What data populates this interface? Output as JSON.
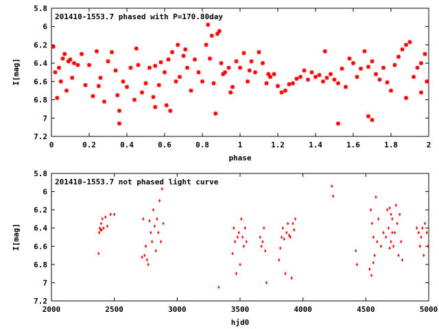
{
  "chart_data": [
    {
      "type": "scatter",
      "title": "201410-1553.7 phased with P=170.80day",
      "xlabel": "phase",
      "ylabel": "I[mag]",
      "xlim": [
        0,
        2
      ],
      "ylim": [
        5.8,
        7.2
      ],
      "y_inverted": true,
      "xticks": [
        "0",
        "0.2",
        "0.4",
        "0.6",
        "0.8",
        "1",
        "1.2",
        "1.4",
        "1.6",
        "1.8",
        "2"
      ],
      "yticks": [
        "5.8",
        "6",
        "6.2",
        "6.4",
        "6.6",
        "6.8",
        "7",
        "7.2"
      ],
      "marker": "star",
      "color": "#ff0000",
      "points": [
        [
          0.01,
          6.22
        ],
        [
          0.02,
          6.5
        ],
        [
          0.03,
          6.78
        ],
        [
          0.04,
          6.45
        ],
        [
          0.05,
          6.6
        ],
        [
          0.07,
          6.3
        ],
        [
          0.08,
          6.7
        ],
        [
          0.09,
          6.38
        ],
        [
          0.1,
          6.36
        ],
        [
          0.12,
          6.4
        ],
        [
          0.14,
          6.42
        ],
        [
          0.16,
          6.3
        ],
        [
          0.18,
          6.64
        ],
        [
          0.2,
          6.42
        ],
        [
          0.22,
          6.76
        ],
        [
          0.24,
          6.27
        ],
        [
          0.26,
          6.56
        ],
        [
          0.28,
          6.82
        ],
        [
          0.3,
          6.38
        ],
        [
          0.32,
          6.28
        ],
        [
          0.34,
          6.48
        ],
        [
          0.36,
          6.92
        ],
        [
          0.38,
          6.6
        ],
        [
          0.4,
          6.66
        ],
        [
          0.42,
          6.45
        ],
        [
          0.44,
          6.8
        ],
        [
          0.46,
          6.42
        ],
        [
          0.48,
          6.72
        ],
        [
          0.5,
          6.62
        ],
        [
          0.52,
          6.45
        ],
        [
          0.54,
          6.77
        ],
        [
          0.55,
          6.43
        ],
        [
          0.57,
          6.64
        ],
        [
          0.58,
          6.39
        ],
        [
          0.6,
          6.5
        ],
        [
          0.62,
          6.36
        ],
        [
          0.64,
          6.28
        ],
        [
          0.66,
          6.6
        ],
        [
          0.68,
          6.55
        ],
        [
          0.7,
          6.32
        ],
        [
          0.72,
          6.45
        ],
        [
          0.74,
          6.7
        ],
        [
          0.76,
          6.36
        ],
        [
          0.78,
          6.5
        ],
        [
          0.8,
          6.6
        ],
        [
          0.82,
          6.2
        ],
        [
          0.84,
          6.35
        ],
        [
          0.86,
          6.62
        ],
        [
          0.88,
          6.08
        ],
        [
          0.9,
          6.4
        ],
        [
          0.92,
          6.5
        ],
        [
          0.94,
          6.45
        ],
        [
          0.96,
          6.66
        ],
        [
          0.98,
          6.38
        ],
        [
          1.0,
          6.45
        ],
        [
          1.02,
          6.29
        ],
        [
          1.04,
          6.6
        ],
        [
          1.06,
          6.38
        ],
        [
          1.08,
          6.5
        ],
        [
          1.1,
          6.28
        ],
        [
          1.12,
          6.4
        ],
        [
          1.14,
          6.62
        ],
        [
          1.16,
          6.55
        ],
        [
          1.18,
          6.52
        ],
        [
          1.2,
          6.65
        ],
        [
          1.22,
          6.72
        ],
        [
          1.24,
          6.7
        ],
        [
          1.26,
          6.63
        ],
        [
          1.28,
          6.62
        ],
        [
          1.3,
          6.57
        ],
        [
          1.32,
          6.55
        ],
        [
          1.34,
          6.48
        ],
        [
          1.36,
          6.58
        ],
        [
          1.38,
          6.5
        ],
        [
          1.4,
          6.55
        ],
        [
          1.42,
          6.53
        ],
        [
          1.44,
          6.6
        ],
        [
          1.46,
          6.56
        ],
        [
          1.48,
          6.52
        ],
        [
          1.5,
          6.58
        ],
        [
          1.52,
          6.62
        ],
        [
          1.54,
          6.46
        ],
        [
          1.56,
          6.66
        ],
        [
          1.58,
          6.35
        ],
        [
          1.6,
          6.4
        ],
        [
          1.62,
          6.55
        ],
        [
          1.64,
          6.46
        ],
        [
          1.66,
          6.27
        ],
        [
          1.68,
          6.44
        ],
        [
          1.7,
          6.38
        ],
        [
          1.72,
          6.52
        ],
        [
          1.74,
          6.58
        ],
        [
          1.76,
          6.45
        ],
        [
          1.78,
          6.61
        ],
        [
          1.8,
          6.7
        ],
        [
          1.82,
          6.42
        ],
        [
          1.84,
          6.33
        ],
        [
          1.86,
          6.25
        ],
        [
          1.88,
          6.2
        ],
        [
          1.9,
          6.17
        ],
        [
          1.92,
          6.55
        ],
        [
          1.94,
          6.45
        ],
        [
          1.96,
          6.4
        ],
        [
          1.98,
          6.3
        ],
        [
          1.99,
          6.6
        ],
        [
          0.06,
          6.35
        ],
        [
          0.11,
          6.56
        ],
        [
          0.25,
          6.65
        ],
        [
          0.35,
          6.75
        ],
        [
          0.45,
          6.24
        ],
        [
          0.61,
          6.86
        ],
        [
          0.63,
          6.92
        ],
        [
          0.67,
          6.2
        ],
        [
          0.71,
          6.25
        ],
        [
          0.83,
          5.98
        ],
        [
          0.85,
          6.1
        ],
        [
          0.87,
          6.95
        ],
        [
          0.89,
          6.05
        ],
        [
          0.91,
          6.52
        ],
        [
          0.95,
          6.72
        ],
        [
          1.05,
          6.48
        ],
        [
          1.15,
          6.52
        ],
        [
          1.45,
          6.27
        ],
        [
          1.52,
          7.06
        ],
        [
          1.68,
          6.98
        ],
        [
          1.7,
          7.02
        ],
        [
          1.88,
          6.78
        ],
        [
          1.96,
          6.72
        ],
        [
          0.36,
          7.06
        ],
        [
          0.55,
          6.88
        ]
      ]
    },
    {
      "type": "scatter",
      "title": "201410-1553.7 not phased light curve",
      "xlabel": "hjd0",
      "ylabel": "I[mag]",
      "xlim": [
        2000,
        5000
      ],
      "ylim": [
        5.8,
        7.2
      ],
      "y_inverted": true,
      "xticks": [
        "2000",
        "2500",
        "3000",
        "3500",
        "4000",
        "4500",
        "5000"
      ],
      "yticks": [
        "5.8",
        "6",
        "6.2",
        "6.4",
        "6.6",
        "6.8",
        "7",
        "7.2"
      ],
      "marker": "diamond",
      "color": "#ff0000",
      "points": [
        [
          2375,
          6.68
        ],
        [
          2380,
          6.45
        ],
        [
          2385,
          6.4
        ],
        [
          2390,
          6.42
        ],
        [
          2395,
          6.35
        ],
        [
          2400,
          6.42
        ],
        [
          2405,
          6.3
        ],
        [
          2415,
          6.4
        ],
        [
          2430,
          6.28
        ],
        [
          2445,
          6.38
        ],
        [
          2470,
          6.25
        ],
        [
          2500,
          6.25
        ],
        [
          2720,
          6.72
        ],
        [
          2730,
          6.3
        ],
        [
          2740,
          6.7
        ],
        [
          2750,
          6.6
        ],
        [
          2760,
          6.75
        ],
        [
          2770,
          6.8
        ],
        [
          2780,
          6.32
        ],
        [
          2790,
          6.45
        ],
        [
          2800,
          6.55
        ],
        [
          2810,
          6.2
        ],
        [
          2820,
          6.38
        ],
        [
          2830,
          6.65
        ],
        [
          2840,
          6.3
        ],
        [
          2850,
          6.45
        ],
        [
          2860,
          6.1
        ],
        [
          2870,
          6.55
        ],
        [
          2880,
          5.97
        ],
        [
          2890,
          6.35
        ],
        [
          3330,
          7.05
        ],
        [
          3440,
          6.68
        ],
        [
          3450,
          6.4
        ],
        [
          3460,
          6.55
        ],
        [
          3470,
          6.9
        ],
        [
          3480,
          6.5
        ],
        [
          3490,
          6.45
        ],
        [
          3500,
          6.8
        ],
        [
          3510,
          6.3
        ],
        [
          3520,
          6.5
        ],
        [
          3530,
          6.6
        ],
        [
          3540,
          6.4
        ],
        [
          3550,
          6.55
        ],
        [
          3660,
          6.5
        ],
        [
          3670,
          6.6
        ],
        [
          3680,
          6.55
        ],
        [
          3690,
          6.4
        ],
        [
          3700,
          6.65
        ],
        [
          3710,
          7.0
        ],
        [
          3810,
          6.75
        ],
        [
          3820,
          6.62
        ],
        [
          3830,
          6.5
        ],
        [
          3840,
          6.4
        ],
        [
          3850,
          6.52
        ],
        [
          3860,
          6.9
        ],
        [
          3870,
          6.45
        ],
        [
          3880,
          6.35
        ],
        [
          3890,
          6.48
        ],
        [
          3900,
          6.5
        ],
        [
          3910,
          6.95
        ],
        [
          3920,
          6.35
        ],
        [
          3930,
          6.42
        ],
        [
          3940,
          6.3
        ],
        [
          4230,
          5.94
        ],
        [
          4240,
          6.05
        ],
        [
          4420,
          6.65
        ],
        [
          4430,
          6.8
        ],
        [
          4530,
          6.85
        ],
        [
          4540,
          6.2
        ],
        [
          4550,
          6.35
        ],
        [
          4560,
          6.5
        ],
        [
          4570,
          6.7
        ],
        [
          4580,
          6.06
        ],
        [
          4590,
          6.55
        ],
        [
          4600,
          6.3
        ],
        [
          4620,
          6.6
        ],
        [
          4640,
          6.45
        ],
        [
          4660,
          6.5
        ],
        [
          4670,
          6.2
        ],
        [
          4680,
          6.4
        ],
        [
          4690,
          6.62
        ],
        [
          4700,
          6.55
        ],
        [
          4710,
          6.3
        ],
        [
          4720,
          6.6
        ],
        [
          4730,
          6.45
        ],
        [
          4740,
          6.15
        ],
        [
          4750,
          6.35
        ],
        [
          4760,
          6.7
        ],
        [
          4770,
          6.25
        ],
        [
          4780,
          6.55
        ],
        [
          4790,
          6.75
        ],
        [
          4920,
          6.45
        ],
        [
          4930,
          6.6
        ],
        [
          4940,
          6.5
        ],
        [
          4950,
          6.4
        ],
        [
          4960,
          6.7
        ],
        [
          4970,
          6.35
        ],
        [
          4985,
          6.45
        ],
        [
          4995,
          6.6
        ],
        [
          4905,
          6.4
        ],
        [
          4545,
          6.92
        ],
        [
          4560,
          6.78
        ],
        [
          4690,
          6.18
        ],
        [
          4700,
          6.25
        ],
        [
          4710,
          6.45
        ]
      ]
    }
  ]
}
